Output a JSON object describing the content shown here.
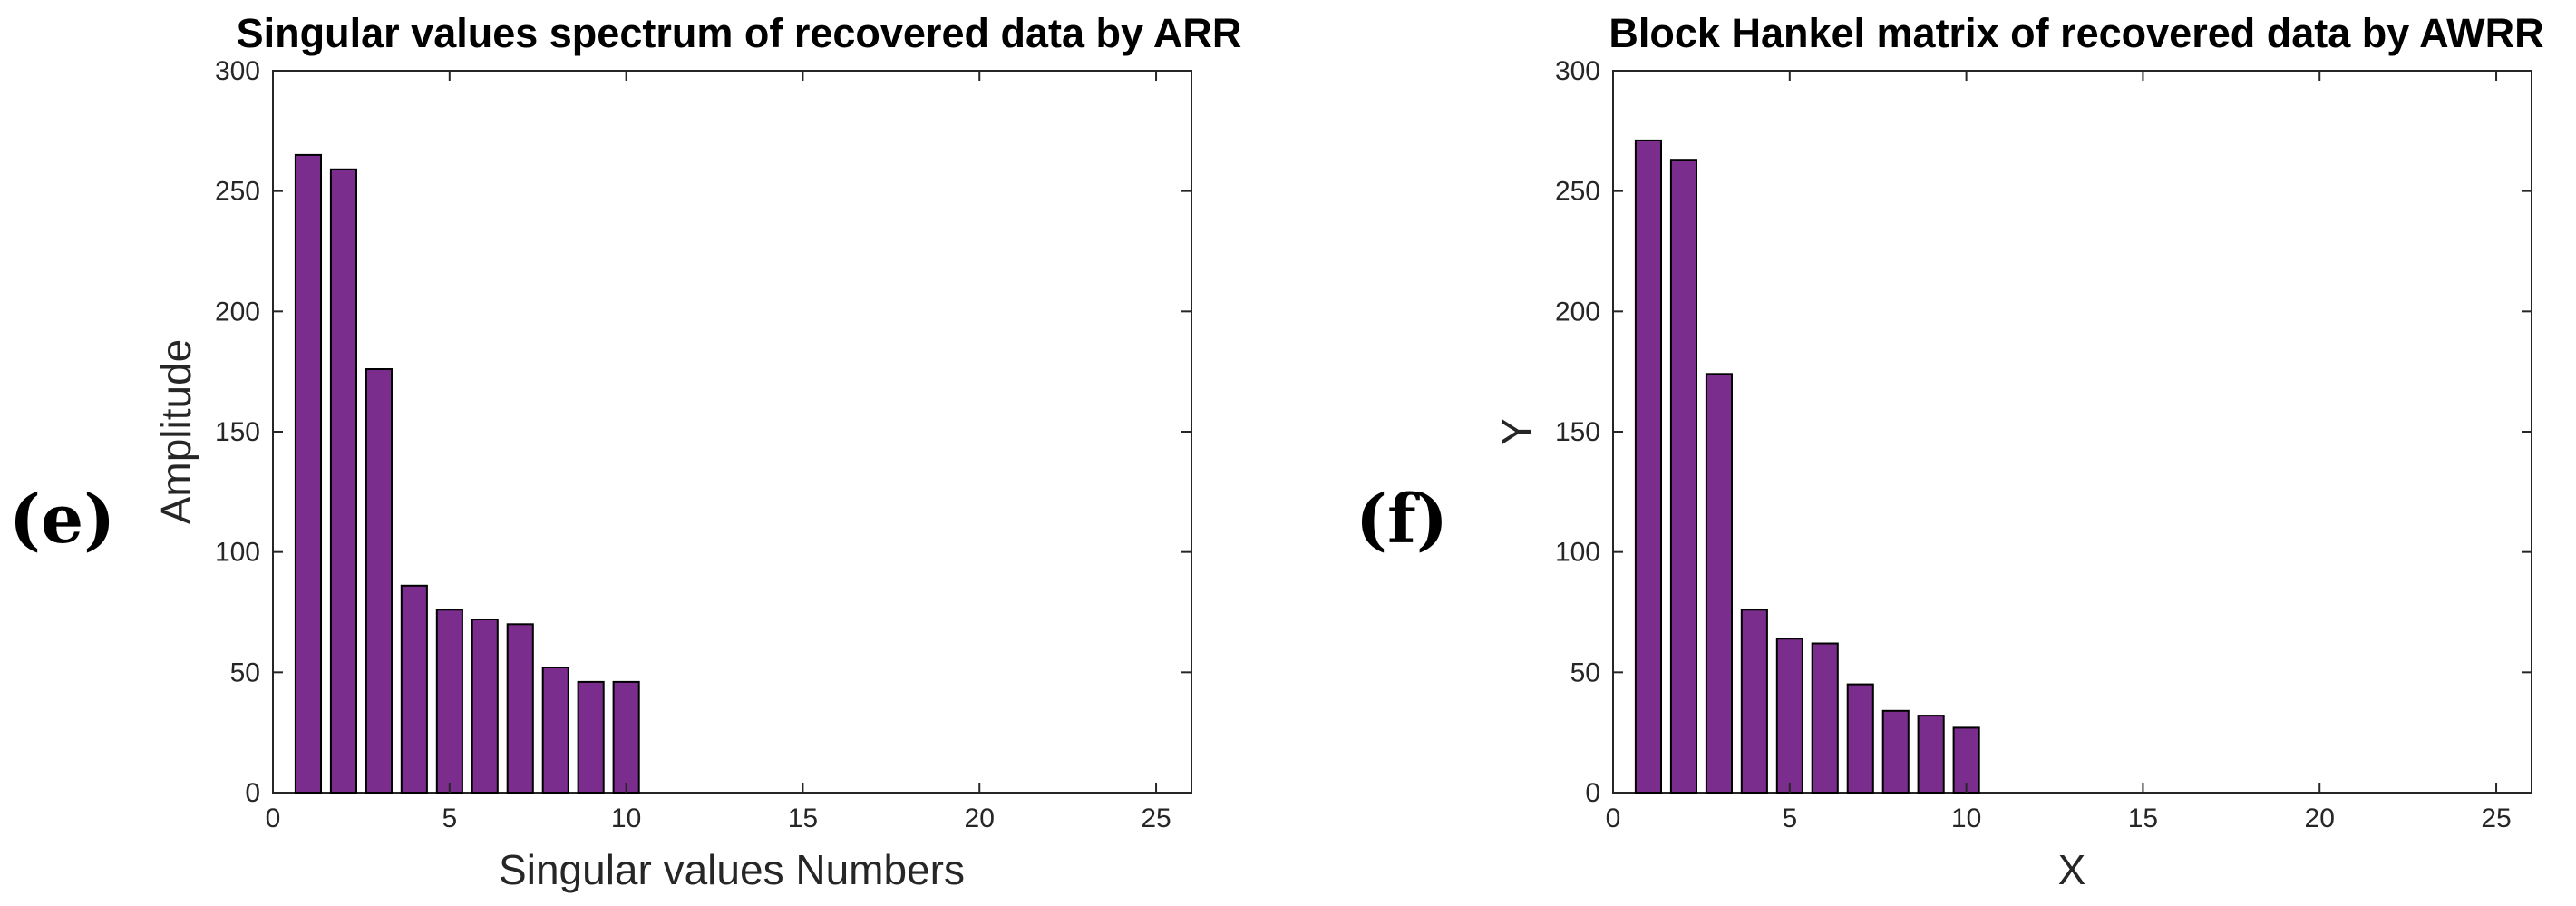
{
  "panels": [
    {
      "label": "(e)",
      "chart_data": {
        "type": "bar",
        "title": "Singular values spectrum of recovered data by ARR",
        "xlabel": "Singular values Numbers",
        "ylabel": "Amplitude",
        "x": [
          1,
          2,
          3,
          4,
          5,
          6,
          7,
          8,
          9,
          10
        ],
        "values": [
          265,
          259,
          176,
          86,
          76,
          72,
          70,
          52,
          46,
          46
        ],
        "xlim": [
          0,
          26
        ],
        "ylim": [
          0,
          300
        ],
        "xticks": [
          0,
          5,
          10,
          15,
          20,
          25
        ],
        "yticks": [
          0,
          50,
          100,
          150,
          200,
          250,
          300
        ],
        "bar_color": "#7a2d8c",
        "grid": false
      }
    },
    {
      "label": "(f)",
      "chart_data": {
        "type": "bar",
        "title": "Block Hankel matrix of recovered data by AWRR",
        "xlabel": "X",
        "ylabel": "Y",
        "x": [
          1,
          2,
          3,
          4,
          5,
          6,
          7,
          8,
          9,
          10
        ],
        "values": [
          271,
          263,
          174,
          76,
          64,
          62,
          45,
          34,
          32,
          27
        ],
        "xlim": [
          0,
          26
        ],
        "ylim": [
          0,
          300
        ],
        "xticks": [
          0,
          5,
          10,
          15,
          20,
          25
        ],
        "yticks": [
          0,
          50,
          100,
          150,
          200,
          250,
          300
        ],
        "bar_color": "#7a2d8c",
        "grid": false
      }
    }
  ]
}
